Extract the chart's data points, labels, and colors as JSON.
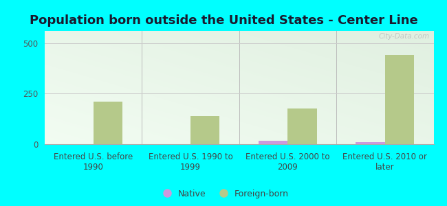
{
  "title": "Population born outside the United States - Center Line",
  "categories": [
    "Entered U.S. before\n1990",
    "Entered U.S. 1990 to\n1999",
    "Entered U.S. 2000 to\n2009",
    "Entered U.S. 2010 or\nlater"
  ],
  "native_values": [
    0,
    0,
    16,
    10
  ],
  "foreign_born_values": [
    210,
    140,
    175,
    440
  ],
  "native_color": "#cc99dd",
  "foreign_born_color": "#b5c98a",
  "background_color": "#00ffff",
  "ylim": [
    0,
    560
  ],
  "yticks": [
    0,
    250,
    500
  ],
  "bar_width": 0.3,
  "legend_labels": [
    "Native",
    "Foreign-born"
  ],
  "grid_color": "#cccccc",
  "title_fontsize": 13,
  "tick_fontsize": 8.5,
  "legend_fontsize": 9,
  "watermark": "City-Data.com"
}
